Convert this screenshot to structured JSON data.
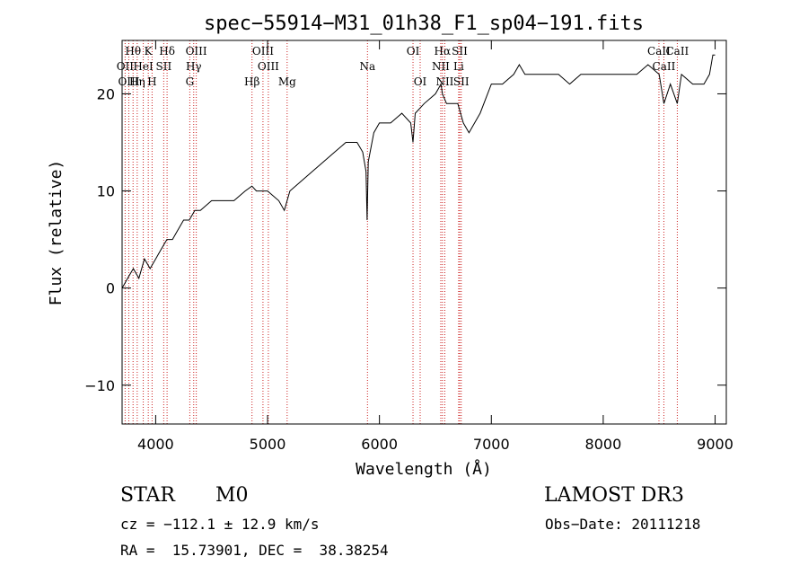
{
  "chart_data": {
    "type": "line",
    "title": "spec−55914−M31_01h38_F1_sp04−191.fits",
    "xlabel": "Wavelength (Å)",
    "ylabel": "Flux (relative)",
    "xlim": [
      3700,
      9100
    ],
    "ylim": [
      -14,
      25.5
    ],
    "x_ticks": [
      4000,
      5000,
      6000,
      7000,
      8000,
      9000
    ],
    "y_ticks": [
      -10,
      0,
      10,
      20
    ],
    "series": [
      {
        "name": "spectrum",
        "x": [
          3700,
          3750,
          3800,
          3850,
          3900,
          3950,
          4000,
          4050,
          4100,
          4150,
          4200,
          4250,
          4300,
          4350,
          4400,
          4500,
          4600,
          4700,
          4800,
          4860,
          4900,
          5000,
          5100,
          5150,
          5200,
          5300,
          5400,
          5500,
          5600,
          5700,
          5800,
          5850,
          5880,
          5890,
          5900,
          5950,
          6000,
          6100,
          6200,
          6280,
          6300,
          6320,
          6400,
          6500,
          6550,
          6563,
          6600,
          6700,
          6750,
          6800,
          6900,
          7000,
          7100,
          7200,
          7250,
          7300,
          7400,
          7500,
          7600,
          7700,
          7800,
          7900,
          8000,
          8100,
          8200,
          8300,
          8400,
          8500,
          8542,
          8600,
          8662,
          8700,
          8800,
          8900,
          8950,
          8980,
          9000
        ],
        "values": [
          0,
          1,
          2,
          1,
          3,
          2,
          3,
          4,
          5,
          5,
          6,
          7,
          7,
          8,
          8,
          9,
          9,
          9,
          10,
          10.5,
          10,
          10,
          9,
          8,
          10,
          11,
          12,
          13,
          14,
          15,
          15,
          14,
          12,
          7,
          13,
          16,
          17,
          17,
          18,
          17,
          15,
          18,
          19,
          20,
          21,
          20,
          19,
          19,
          17,
          16,
          18,
          21,
          21,
          22,
          23,
          22,
          22,
          22,
          22,
          21,
          22,
          22,
          22,
          22,
          22,
          22,
          23,
          22,
          19,
          21,
          19,
          22,
          21,
          21,
          22,
          24,
          24
        ]
      }
    ],
    "line_markers": [
      {
        "label": "Hθ",
        "wavelength": 3798
      },
      {
        "label": "K",
        "wavelength": 3934
      },
      {
        "label": "Hδ",
        "wavelength": 4102
      },
      {
        "label": "OIII",
        "wavelength": 4363
      },
      {
        "label": "OIII",
        "wavelength": 4959
      },
      {
        "label": "OI",
        "wavelength": 6300
      },
      {
        "label": "Hα",
        "wavelength": 6563
      },
      {
        "label": "SII",
        "wavelength": 6717
      },
      {
        "label": "CaII",
        "wavelength": 8498
      },
      {
        "label": "OII",
        "wavelength": 3727
      },
      {
        "label": "HeI",
        "wavelength": 3889
      },
      {
        "label": "SII",
        "wavelength": 4072
      },
      {
        "label": "Hγ",
        "wavelength": 4340
      },
      {
        "label": "OIII",
        "wavelength": 5007
      },
      {
        "label": "Na",
        "wavelength": 5893
      },
      {
        "label": "NII",
        "wavelength": 6548
      },
      {
        "label": "Li",
        "wavelength": 6708
      },
      {
        "label": "CaII",
        "wavelength": 8542
      },
      {
        "label": "OIII",
        "wavelength": 3760
      },
      {
        "label": "Hη",
        "wavelength": 3835
      },
      {
        "label": "H",
        "wavelength": 3968
      },
      {
        "label": "G",
        "wavelength": 4305
      },
      {
        "label": "Hβ",
        "wavelength": 4861
      },
      {
        "label": "Mg",
        "wavelength": 5175
      },
      {
        "label": "OI",
        "wavelength": 6364
      },
      {
        "label": "NII",
        "wavelength": 6584
      },
      {
        "label": "SII",
        "wavelength": 6731
      },
      {
        "label": "CaII",
        "wavelength": 8662
      }
    ]
  },
  "info": {
    "class": "STAR",
    "subclass": "M0",
    "survey": "LAMOST DR3",
    "cz": "cz = −112.1 ± 12.9 km/s",
    "obs_date": "Obs−Date: 20111218",
    "coords": "RA =  15.73901, DEC =  38.38254"
  },
  "colors": {
    "spectrum": "#000000",
    "marker": "#cc2222",
    "axes": "#000000"
  }
}
